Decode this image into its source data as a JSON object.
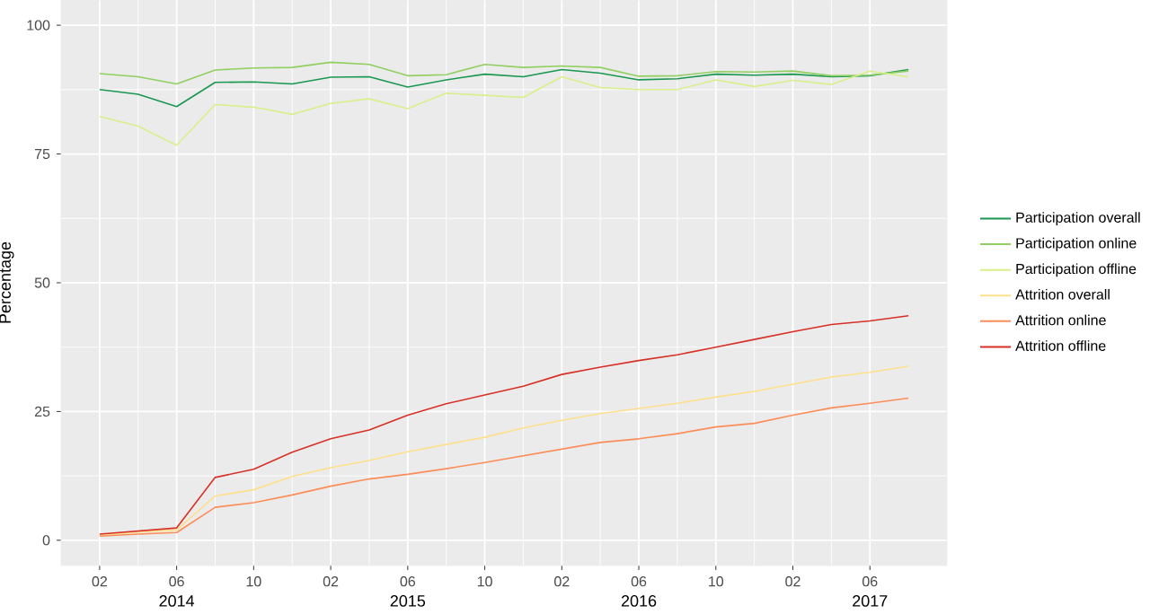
{
  "chart_data": {
    "type": "line",
    "ylabel": "Percentage",
    "x": [
      "2014-02",
      "2014-04",
      "2014-06",
      "2014-08",
      "2014-10",
      "2014-12",
      "2015-02",
      "2015-04",
      "2015-06",
      "2015-08",
      "2015-10",
      "2015-12",
      "2016-02",
      "2016-04",
      "2016-06",
      "2016-08",
      "2016-10",
      "2016-12",
      "2017-02",
      "2017-04",
      "2017-06",
      "2017-08"
    ],
    "series": [
      {
        "name": "Participation overall",
        "color": "#1a9850",
        "values": [
          87.5,
          86.6,
          84.2,
          88.9,
          89.0,
          88.6,
          89.9,
          90.0,
          88.0,
          89.4,
          90.5,
          90.0,
          91.4,
          90.7,
          89.4,
          89.6,
          90.5,
          90.3,
          90.5,
          90.0,
          90.2,
          91.4
        ]
      },
      {
        "name": "Participation online",
        "color": "#91cf60",
        "values": [
          90.6,
          90.0,
          88.6,
          91.3,
          91.7,
          91.8,
          92.8,
          92.4,
          90.2,
          90.4,
          92.4,
          91.8,
          92.1,
          91.8,
          90.1,
          90.2,
          91.0,
          90.9,
          91.1,
          90.2,
          90.3,
          91.1
        ]
      },
      {
        "name": "Participation offline",
        "color": "#d9ef8b",
        "values": [
          82.3,
          80.4,
          76.7,
          84.6,
          84.1,
          82.7,
          84.8,
          85.7,
          83.8,
          86.8,
          86.4,
          86.0,
          90.0,
          87.9,
          87.5,
          87.5,
          89.4,
          88.1,
          89.3,
          88.5,
          91.1,
          90.0
        ]
      },
      {
        "name": "Attrition overall",
        "color": "#fee08b",
        "values": [
          1.0,
          1.6,
          2.0,
          8.6,
          9.8,
          12.4,
          14.1,
          15.5,
          17.2,
          18.6,
          20.0,
          21.8,
          23.3,
          24.6,
          25.6,
          26.6,
          27.8,
          28.9,
          30.3,
          31.7,
          32.6,
          33.8
        ]
      },
      {
        "name": "Attrition online",
        "color": "#fc8d59",
        "values": [
          0.8,
          1.2,
          1.5,
          6.4,
          7.3,
          8.8,
          10.5,
          11.9,
          12.8,
          13.9,
          15.1,
          16.4,
          17.7,
          19.0,
          19.7,
          20.7,
          22.0,
          22.7,
          24.3,
          25.7,
          26.6,
          27.6
        ]
      },
      {
        "name": "Attrition offline",
        "color": "#d73027",
        "values": [
          1.2,
          1.8,
          2.4,
          12.2,
          13.8,
          17.1,
          19.7,
          21.4,
          24.3,
          26.5,
          28.2,
          29.9,
          32.2,
          33.6,
          34.9,
          36.0,
          37.5,
          39.0,
          40.5,
          41.9,
          42.6,
          43.6
        ]
      }
    ],
    "xlim": [
      "2013-12",
      "2017-10"
    ],
    "xticks": [
      {
        "value": "2014-02",
        "label": "02"
      },
      {
        "value": "2014-06",
        "label": "06"
      },
      {
        "value": "2014-10",
        "label": "10"
      },
      {
        "value": "2015-02",
        "label": "02"
      },
      {
        "value": "2015-06",
        "label": "06"
      },
      {
        "value": "2015-10",
        "label": "10"
      },
      {
        "value": "2016-02",
        "label": "02"
      },
      {
        "value": "2016-06",
        "label": "06"
      },
      {
        "value": "2016-10",
        "label": "10"
      },
      {
        "value": "2017-02",
        "label": "02"
      },
      {
        "value": "2017-06",
        "label": "06"
      }
    ],
    "ylim": [
      -4.9,
      104.9
    ],
    "yticks": [
      0,
      25,
      50,
      75,
      100
    ],
    "annotations": [
      "2014",
      "2015",
      "2016",
      "2017"
    ],
    "grid": true,
    "legend": "right"
  }
}
